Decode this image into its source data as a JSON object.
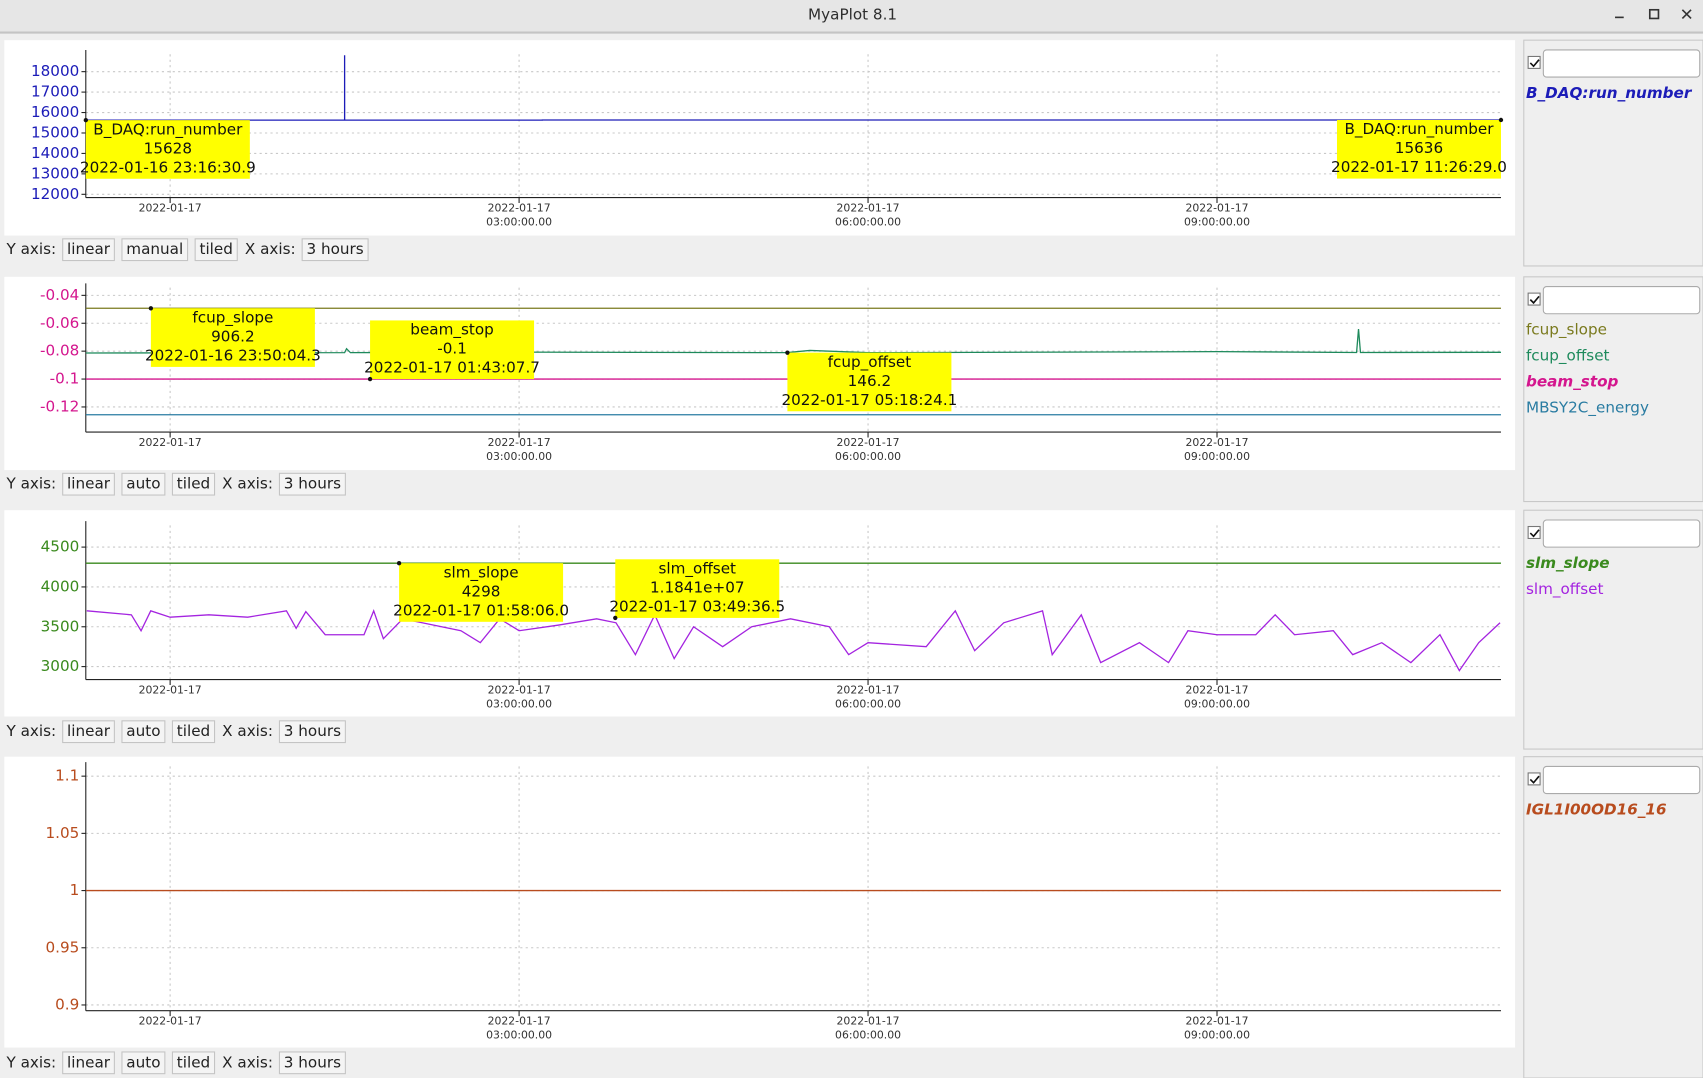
{
  "window": {
    "title": "MyaPlot 8.1"
  },
  "toolbars": [
    {
      "y_axis_label": "Y axis:",
      "scale": "linear",
      "mode": "manual",
      "layout": "tiled",
      "x_axis_label": "X axis:",
      "span": "3 hours"
    },
    {
      "y_axis_label": "Y axis:",
      "scale": "linear",
      "mode": "auto",
      "layout": "tiled",
      "x_axis_label": "X axis:",
      "span": "3 hours"
    },
    {
      "y_axis_label": "Y axis:",
      "scale": "linear",
      "mode": "auto",
      "layout": "tiled",
      "x_axis_label": "X axis:",
      "span": "3 hours"
    },
    {
      "y_axis_label": "Y axis:",
      "scale": "linear",
      "mode": "auto",
      "layout": "tiled",
      "x_axis_label": "X axis:",
      "span": "3 hours"
    }
  ],
  "chart_data": [
    {
      "type": "line",
      "grid": true,
      "xlim": [
        "2022-01-16 23:16:30",
        "2022-01-17 11:26:29"
      ],
      "xticks": [
        {
          "value": "2022-01-17 00:00:00",
          "label": [
            "2022-01-17"
          ]
        },
        {
          "value": "2022-01-17 03:00:00",
          "label": [
            "2022-01-17",
            "03:00:00.00"
          ]
        },
        {
          "value": "2022-01-17 06:00:00",
          "label": [
            "2022-01-17",
            "06:00:00.00"
          ]
        },
        {
          "value": "2022-01-17 09:00:00",
          "label": [
            "2022-01-17",
            "09:00:00.00"
          ]
        }
      ],
      "ylim": [
        11840,
        18850
      ],
      "yticks": [
        12000,
        13000,
        14000,
        15000,
        16000,
        17000,
        18000
      ],
      "series": [
        {
          "name": "B_DAQ:run_number",
          "color": "#1c1cb8",
          "x": [
            "2022-01-16 23:16:30.9",
            "2022-01-17 01:30:00",
            "2022-01-17 01:30:00",
            "2022-01-17 01:30:01",
            "2022-01-17 03:12:00",
            "2022-01-17 03:12:00",
            "2022-01-17 11:26:29.0"
          ],
          "values": [
            15628,
            15628,
            18800,
            15628,
            15628,
            15636,
            15636
          ]
        }
      ],
      "annotations": [
        {
          "name": "B_DAQ:run_number",
          "value": 15628,
          "time": "2022-01-16 23:16:30.9"
        },
        {
          "name": "B_DAQ:run_number",
          "value": 15636,
          "time": "2022-01-17 11:26:29.0"
        }
      ]
    },
    {
      "type": "line",
      "grid": true,
      "xlim": [
        "2022-01-16 23:16:30",
        "2022-01-17 11:26:29"
      ],
      "xticks": [
        {
          "value": "2022-01-17 00:00:00",
          "label": [
            "2022-01-17"
          ]
        },
        {
          "value": "2022-01-17 03:00:00",
          "label": [
            "2022-01-17",
            "03:00:00.00"
          ]
        },
        {
          "value": "2022-01-17 06:00:00",
          "label": [
            "2022-01-17",
            "06:00:00.00"
          ]
        },
        {
          "value": "2022-01-17 09:00:00",
          "label": [
            "2022-01-17",
            "09:00:00.00"
          ]
        }
      ],
      "ylim": [
        -0.138,
        -0.0345
      ],
      "yticks": [
        -0.04,
        -0.06,
        -0.08,
        -0.1,
        -0.12
      ],
      "series": [
        {
          "name": "fcup_slope",
          "color": "#7a7a1e",
          "ylim": [
            0,
            1057
          ],
          "x": [
            "2022-01-16 23:16:31",
            "2022-01-17 11:26:29"
          ],
          "values": [
            906.2,
            906.2
          ]
        },
        {
          "name": "fcup_offset",
          "color": "#1e8a5c",
          "ylim": [
            100,
            184
          ],
          "x": [
            "2022-01-16 23:16:31",
            "2022-01-17 01:30:00",
            "2022-01-17 01:31:00",
            "2022-01-17 01:33:00",
            "2022-01-17 03:00:00",
            "2022-01-17 05:18:00",
            "2022-01-17 05:30:00",
            "2022-01-17 06:00:00",
            "2022-01-17 08:00:00",
            "2022-01-17 09:00:00",
            "2022-01-17 10:12:00",
            "2022-01-17 10:13:00",
            "2022-01-17 10:14:00",
            "2022-01-17 11:26:29"
          ],
          "values": [
            146.0,
            146.2,
            148.5,
            146.2,
            146.5,
            146.2,
            147.5,
            146.2,
            146.6,
            146.8,
            146.3,
            159.9,
            146.3,
            146.4
          ]
        },
        {
          "name": "beam_stop",
          "color": "#d4168e",
          "x": [
            "2022-01-16 23:16:31",
            "2022-01-17 11:26:29"
          ],
          "values": [
            -0.1,
            -0.1
          ]
        },
        {
          "name": "MBSY2C_energy",
          "color": "#2a7ca2",
          "ylim": [
            2.0,
            3.67
          ],
          "x": [
            "2022-01-16 23:16:31",
            "2022-01-17 11:26:29"
          ],
          "values": [
            2.2,
            2.2
          ]
        }
      ],
      "annotations": [
        {
          "name": "fcup_slope",
          "value": 906.2,
          "time": "2022-01-16 23:50:04.3"
        },
        {
          "name": "beam_stop",
          "value": -0.1,
          "time": "2022-01-17 01:43:07.7"
        },
        {
          "name": "fcup_offset",
          "value": 146.2,
          "time": "2022-01-17 05:18:24.1"
        }
      ]
    },
    {
      "type": "line",
      "grid": true,
      "xlim": [
        "2022-01-16 23:16:30",
        "2022-01-17 11:26:29"
      ],
      "xticks": [
        {
          "value": "2022-01-17 00:00:00",
          "label": [
            "2022-01-17"
          ]
        },
        {
          "value": "2022-01-17 03:00:00",
          "label": [
            "2022-01-17",
            "03:00:00.00"
          ]
        },
        {
          "value": "2022-01-17 06:00:00",
          "label": [
            "2022-01-17",
            "06:00:00.00"
          ]
        },
        {
          "value": "2022-01-17 09:00:00",
          "label": [
            "2022-01-17",
            "09:00:00.00"
          ]
        }
      ],
      "ylim": [
        2837,
        4772
      ],
      "yticks": [
        3000,
        3500,
        4000,
        4500
      ],
      "series": [
        {
          "name": "slm_slope",
          "color": "#3a8a1e",
          "x": [
            "2022-01-16 23:16:31",
            "2022-01-17 11:26:29"
          ],
          "values": [
            4298,
            4298
          ]
        },
        {
          "name": "slm_offset",
          "color": "#a424e0",
          "ylim": [
            11700000,
            12052500
          ],
          "x": [
            "2022-01-16 23:17:00",
            "2022-01-16 23:40:00",
            "2022-01-16 23:45:00",
            "2022-01-16 23:50:00",
            "2022-01-17 00:00:00",
            "2022-01-17 00:20:00",
            "2022-01-17 00:40:00",
            "2022-01-17 01:00:00",
            "2022-01-17 01:05:00",
            "2022-01-17 01:10:00",
            "2022-01-17 01:20:00",
            "2022-01-17 01:40:00",
            "2022-01-17 01:45:00",
            "2022-01-17 01:50:00",
            "2022-01-17 02:00:00",
            "2022-01-17 02:10:00",
            "2022-01-17 02:30:00",
            "2022-01-17 02:40:00",
            "2022-01-17 02:50:00",
            "2022-01-17 03:00:00",
            "2022-01-17 03:20:00",
            "2022-01-17 03:40:00",
            "2022-01-17 03:50:00",
            "2022-01-17 04:00:00",
            "2022-01-17 04:10:00",
            "2022-01-17 04:20:00",
            "2022-01-17 04:30:00",
            "2022-01-17 04:45:00",
            "2022-01-17 05:00:00",
            "2022-01-17 05:20:00",
            "2022-01-17 05:40:00",
            "2022-01-17 05:50:00",
            "2022-01-17 06:00:00",
            "2022-01-17 06:30:00",
            "2022-01-17 06:45:00",
            "2022-01-17 06:55:00",
            "2022-01-17 07:10:00",
            "2022-01-17 07:30:00",
            "2022-01-17 07:35:00",
            "2022-01-17 07:50:00",
            "2022-01-17 08:00:00",
            "2022-01-17 08:20:00",
            "2022-01-17 08:35:00",
            "2022-01-17 08:45:00",
            "2022-01-17 09:00:00",
            "2022-01-17 09:20:00",
            "2022-01-17 09:30:00",
            "2022-01-17 09:40:00",
            "2022-01-17 10:00:00",
            "2022-01-17 10:10:00",
            "2022-01-17 10:25:00",
            "2022-01-17 10:40:00",
            "2022-01-17 10:55:00",
            "2022-01-17 11:05:00",
            "2022-01-17 11:15:00",
            "2022-01-17 11:26:00"
          ],
          "values": [
            11857200,
            11848100,
            11811700,
            11857200,
            11842700,
            11848100,
            11842700,
            11857200,
            11817200,
            11855400,
            11802600,
            11802600,
            11857200,
            11793500,
            11839000,
            11829900,
            11811700,
            11784400,
            11839000,
            11811700,
            11824400,
            11839000,
            11829900,
            11757000,
            11848100,
            11747900,
            11820800,
            11775300,
            11820800,
            11839000,
            11820800,
            11757000,
            11784400,
            11775300,
            11857200,
            11766100,
            11829900,
            11857200,
            11757000,
            11848100,
            11738800,
            11784400,
            11738800,
            11811700,
            11802600,
            11802600,
            11848100,
            11802600,
            11811700,
            11757000,
            11784400,
            11738800,
            11802600,
            11720600,
            11784400,
            11829900
          ]
        }
      ],
      "annotations": [
        {
          "name": "slm_slope",
          "value": 4298,
          "time": "2022-01-17 01:58:06.0"
        },
        {
          "name": "slm_offset",
          "value": 11841000,
          "value_label": "1.1841e+07",
          "time": "2022-01-17 03:49:36.5"
        }
      ]
    },
    {
      "type": "line",
      "grid": true,
      "xlim": [
        "2022-01-16 23:16:30",
        "2022-01-17 11:26:29"
      ],
      "xticks": [
        {
          "value": "2022-01-17 00:00:00",
          "label": [
            "2022-01-17"
          ]
        },
        {
          "value": "2022-01-17 03:00:00",
          "label": [
            "2022-01-17",
            "03:00:00.00"
          ]
        },
        {
          "value": "2022-01-17 06:00:00",
          "label": [
            "2022-01-17",
            "06:00:00.00"
          ]
        },
        {
          "value": "2022-01-17 09:00:00",
          "label": [
            "2022-01-17",
            "09:00:00.00"
          ]
        }
      ],
      "ylim": [
        0.895,
        1.1085
      ],
      "yticks": [
        1.1,
        1.05,
        1,
        0.95,
        0.9
      ],
      "series": [
        {
          "name": "IGL1I00OD16_16",
          "color": "#b84c1e",
          "x": [
            "2022-01-16 23:16:31",
            "2022-01-17 11:26:29"
          ],
          "values": [
            1,
            1
          ]
        }
      ],
      "annotations": []
    }
  ]
}
